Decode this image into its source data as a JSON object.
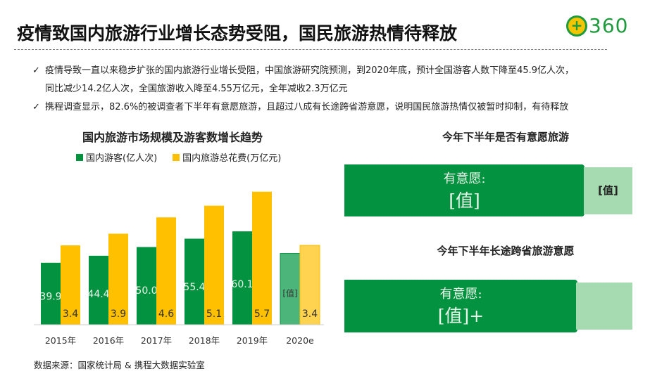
{
  "header": {
    "title": "疫情致国内旅游行业增长态势受阻，国民旅游热情待释放",
    "logo_text": "360"
  },
  "bullets": [
    {
      "icon": "check-icon",
      "lines": [
        "疫情导致一直以来稳步扩张的国内旅游行业增长受阻，中国旅游研究院预测，到2020年底，预计全国游客人数下降至45.9亿人次，",
        "同比减少14.2亿人次，全国旅游收入降至4.55万亿元，全年减收2.3万亿元"
      ]
    },
    {
      "icon": "check-icon",
      "lines": [
        "携程调查显示，82.6%的被调查者下半年有意愿旅游，且超过八成有长途跨省游意愿，说明国民旅游热情仅被暂时抑制，有待释放"
      ]
    }
  ],
  "chart_data": {
    "type": "bar",
    "title": "国内旅游市场规模及游客数增长趋势",
    "categories": [
      "2015年",
      "2016年",
      "2017年",
      "2018年",
      "2019年",
      "2020e"
    ],
    "series": [
      {
        "name": "国内游客(亿人次)",
        "color": "#03923f",
        "values": [
          39.9,
          44.4,
          50.0,
          55.4,
          60.1,
          45.9
        ],
        "labels": [
          "39.9",
          "44.4",
          "50.0",
          "55.4",
          "60.1",
          "[值]"
        ]
      },
      {
        "name": "国内旅游总花费(万亿元)",
        "color": "#ffc000",
        "values": [
          3.4,
          3.9,
          4.6,
          5.1,
          5.7,
          3.4
        ],
        "labels": [
          "3.4",
          "3.9",
          "4.6",
          "5.1",
          "5.7",
          "3.4"
        ]
      }
    ],
    "estimate_category": "2020e",
    "legend": "top",
    "grid": false
  },
  "source": "数据来源：国家统计局 & 携程大数据实验室",
  "survey": [
    {
      "title": "今年下半年是否有意愿旅游",
      "label": "有意愿:",
      "value": "[值]",
      "other_value": "[值]"
    },
    {
      "title": "今年下半年长途跨省旅游意愿",
      "label": "有意愿:",
      "value": "[值]+",
      "other_value": ""
    }
  ],
  "colors": {
    "green": "#03923f",
    "yellow": "#ffc000",
    "light_green": "#a6dbb1"
  }
}
